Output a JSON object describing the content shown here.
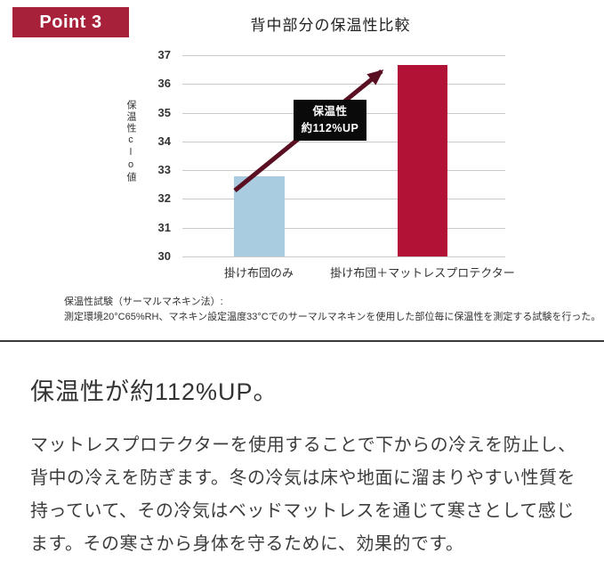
{
  "badge": {
    "label": "Point 3",
    "color": "#a8213a",
    "text_color": "#ffffff"
  },
  "chart_data": {
    "type": "bar",
    "title": "背中部分の保温性比較",
    "categories": [
      "掛け布団のみ",
      "掛け布団＋マットレスプロテクター"
    ],
    "values": [
      32.8,
      36.65
    ],
    "bar_colors": [
      "#a9cce1",
      "#b31237"
    ],
    "ylabel": "保温性clo値",
    "ylim": [
      30,
      37
    ],
    "ytick_step": 1,
    "grid": true,
    "legend": "none",
    "annotation": {
      "line1": "保温性",
      "line2": "約112%UP",
      "bg": "#0a0a0a",
      "color": "#ffffff"
    },
    "arrow_color": "#5a0f22"
  },
  "footnote": {
    "line1": "保温性試験（サーマルマネキン法）:",
    "line2": "測定環境20°C65%RH、マネキン設定温度33°Cでのサーマルマネキンを使用した部位毎に保温性を測定する試験を行った。"
  },
  "body": {
    "heading": "保温性が約112%UP。",
    "paragraph": "マットレスプロテクターを使用することで下からの冷えを防止し、背中の冷えを防ぎます。冬の冷気は床や地面に溜まりやすい性質を持っていて、その冷気はベッドマットレスを通じて寒さとして感じます。その寒さから身体を守るために、効果的です。"
  }
}
